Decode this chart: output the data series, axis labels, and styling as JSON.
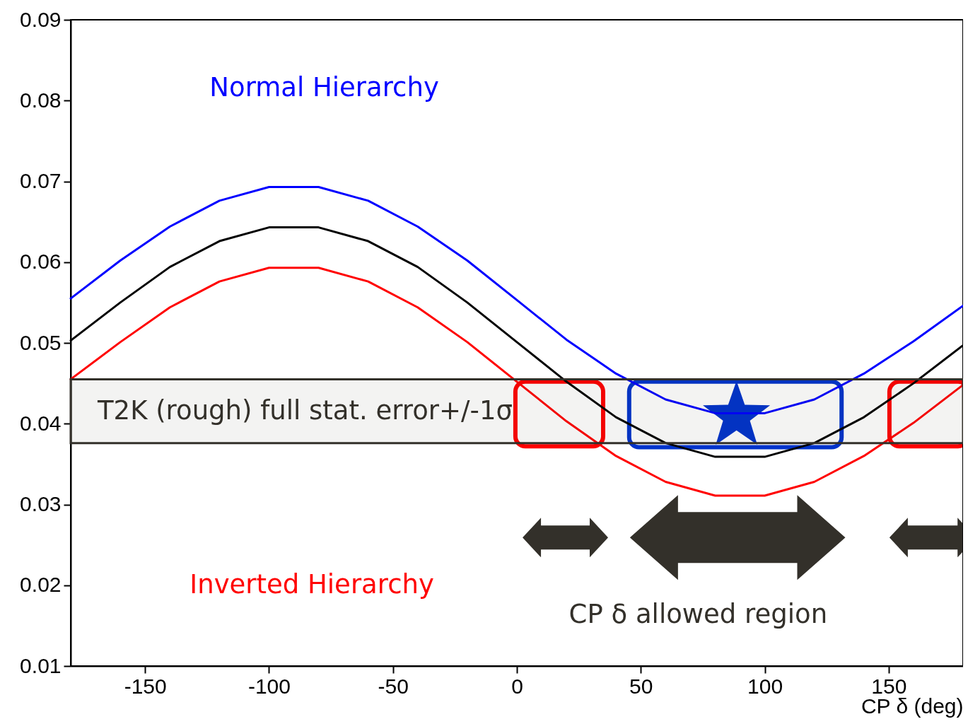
{
  "chart_data": {
    "type": "line",
    "xlabel": "CP δ (deg)",
    "x": [
      -180,
      -160,
      -140,
      -120,
      -100,
      -80,
      -60,
      -40,
      -20,
      0,
      20,
      40,
      60,
      80,
      100,
      120,
      140,
      160,
      180
    ],
    "series": [
      {
        "name": "Normal Hierarchy",
        "color": "#0000ff",
        "values": [
          0.0555,
          0.0602,
          0.0644,
          0.0676,
          0.0693,
          0.0693,
          0.0676,
          0.0644,
          0.0602,
          0.0553,
          0.0504,
          0.0462,
          0.043,
          0.0413,
          0.0413,
          0.043,
          0.0462,
          0.0502,
          0.0546
        ]
      },
      {
        "color": "#000000",
        "values": [
          0.0503,
          0.055,
          0.0594,
          0.0626,
          0.0643,
          0.0643,
          0.0626,
          0.0594,
          0.055,
          0.0501,
          0.0452,
          0.0408,
          0.0376,
          0.0359,
          0.0359,
          0.0376,
          0.0408,
          0.045,
          0.0497
        ]
      },
      {
        "name": "Inverted Hierarchy",
        "color": "#ff0000",
        "values": [
          0.0455,
          0.0501,
          0.0544,
          0.0576,
          0.0593,
          0.0593,
          0.0576,
          0.0544,
          0.0501,
          0.0452,
          0.0403,
          0.036,
          0.0328,
          0.0311,
          0.0311,
          0.0328,
          0.036,
          0.0401,
          0.0448
        ]
      }
    ],
    "bands": [
      {
        "axis": "y",
        "from": 0.0376,
        "to": 0.0455,
        "label": "T2K (rough) full stat. error+/-1σ",
        "color": "#33302a"
      }
    ],
    "annotations": [
      "CP δ  allowed region"
    ],
    "xlim": [
      -180,
      180
    ],
    "xticks": [
      -150,
      -100,
      -50,
      0,
      50,
      100,
      150
    ],
    "ylim": [
      0.01,
      0.09
    ],
    "yticks": [
      0.01,
      0.02,
      0.03,
      0.04,
      0.05,
      0.06,
      0.07,
      0.08,
      0.09
    ],
    "grid": false,
    "legend": false,
    "marker": "none",
    "line_style": "solid"
  }
}
